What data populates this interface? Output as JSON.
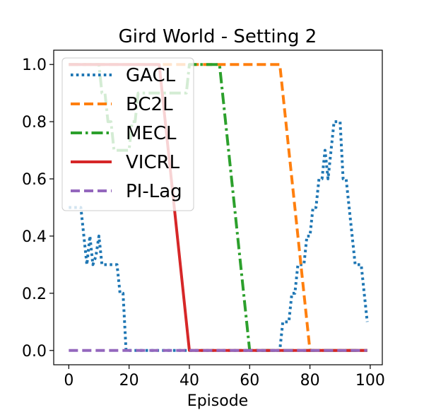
{
  "chart_data": {
    "type": "line",
    "title": "Gird World - Setting 2",
    "xlabel": "Episode",
    "ylabel": "",
    "xlim": [
      -5,
      104
    ],
    "ylim": [
      -0.05,
      1.05
    ],
    "xticks": [
      0,
      20,
      40,
      60,
      80,
      100
    ],
    "xtick_labels": [
      "0",
      "20",
      "40",
      "60",
      "80",
      "100"
    ],
    "yticks": [
      0.0,
      0.2,
      0.4,
      0.6,
      0.8,
      1.0
    ],
    "ytick_labels": [
      "0.0",
      "0.2",
      "0.4",
      "0.6",
      "0.8",
      "1.0"
    ],
    "grid": false,
    "legend_position": "top-left",
    "series": [
      {
        "name": "GACL",
        "color": "#1f77b4",
        "style": "dotted",
        "x": [
          0,
          1,
          2,
          3,
          4,
          5,
          6,
          7,
          8,
          9,
          10,
          11,
          12,
          13,
          14,
          15,
          16,
          17,
          18,
          19,
          20,
          21,
          22,
          23,
          24,
          25,
          26,
          27,
          28,
          29,
          30,
          31,
          32,
          33,
          34,
          35,
          36,
          37,
          38,
          39,
          40,
          41,
          42,
          43,
          44,
          45,
          46,
          47,
          48,
          49,
          50,
          51,
          52,
          53,
          54,
          55,
          56,
          57,
          58,
          59,
          60,
          61,
          62,
          63,
          64,
          65,
          66,
          67,
          68,
          69,
          70,
          71,
          72,
          73,
          74,
          75,
          76,
          77,
          78,
          79,
          80,
          81,
          82,
          83,
          84,
          85,
          86,
          87,
          88,
          89,
          90,
          91,
          92,
          93,
          94,
          95,
          96,
          97,
          98,
          99
        ],
        "values": [
          0.5,
          0.5,
          0.5,
          0.5,
          0.5,
          0.4,
          0.3,
          0.4,
          0.3,
          0.33,
          0.4,
          0.3,
          0.3,
          0.3,
          0.3,
          0.3,
          0.3,
          0.2,
          0.2,
          0.0,
          0.0,
          0.0,
          0.0,
          0.0,
          0.0,
          0.0,
          0.0,
          0.0,
          0.0,
          0.0,
          0.0,
          0.0,
          0.0,
          0.0,
          0.0,
          0.0,
          0.0,
          0.0,
          0.0,
          0.0,
          0.0,
          0.0,
          0.0,
          0.0,
          0.0,
          0.0,
          0.0,
          0.0,
          0.0,
          0.0,
          0.0,
          0.0,
          0.0,
          0.0,
          0.0,
          0.0,
          0.0,
          0.0,
          0.0,
          0.0,
          0.0,
          0.0,
          0.0,
          0.0,
          0.0,
          0.0,
          0.0,
          0.0,
          0.0,
          0.0,
          0.0,
          0.1,
          0.1,
          0.1,
          0.2,
          0.2,
          0.3,
          0.3,
          0.3,
          0.4,
          0.4,
          0.5,
          0.5,
          0.6,
          0.6,
          0.7,
          0.6,
          0.7,
          0.8,
          0.8,
          0.8,
          0.6,
          0.6,
          0.5,
          0.4,
          0.3,
          0.3,
          0.3,
          0.2,
          0.1
        ]
      },
      {
        "name": "BC2L",
        "color": "#ff7f0e",
        "style": "dashed",
        "x": [
          0,
          70,
          80,
          99
        ],
        "values": [
          1.0,
          1.0,
          0.0,
          0.0
        ]
      },
      {
        "name": "MECL",
        "color": "#2ca02c",
        "style": "dashdot",
        "x": [
          0,
          10,
          11,
          12,
          13,
          14,
          15,
          16,
          17,
          18,
          19,
          20,
          21,
          22,
          23,
          24,
          25,
          26,
          27,
          28,
          29,
          30,
          31,
          32,
          33,
          34,
          35,
          36,
          37,
          38,
          39,
          40,
          50,
          60,
          99
        ],
        "values": [
          1.0,
          1.0,
          0.9,
          0.9,
          0.8,
          0.8,
          0.7,
          0.7,
          0.7,
          0.7,
          0.7,
          0.7,
          0.8,
          0.8,
          0.9,
          0.9,
          0.9,
          0.9,
          0.9,
          0.9,
          0.9,
          0.9,
          0.9,
          0.9,
          0.9,
          0.9,
          0.9,
          0.9,
          0.9,
          0.9,
          0.9,
          1.0,
          1.0,
          0.0,
          0.0
        ]
      },
      {
        "name": "VICRL",
        "color": "#d62728",
        "style": "solid",
        "x": [
          0,
          30,
          40,
          99
        ],
        "values": [
          1.0,
          1.0,
          0.0,
          0.0
        ]
      },
      {
        "name": "PI-Lag",
        "color": "#9467bd",
        "style": "dashed",
        "x": [
          0,
          99
        ],
        "values": [
          0.0,
          0.0
        ]
      }
    ]
  }
}
